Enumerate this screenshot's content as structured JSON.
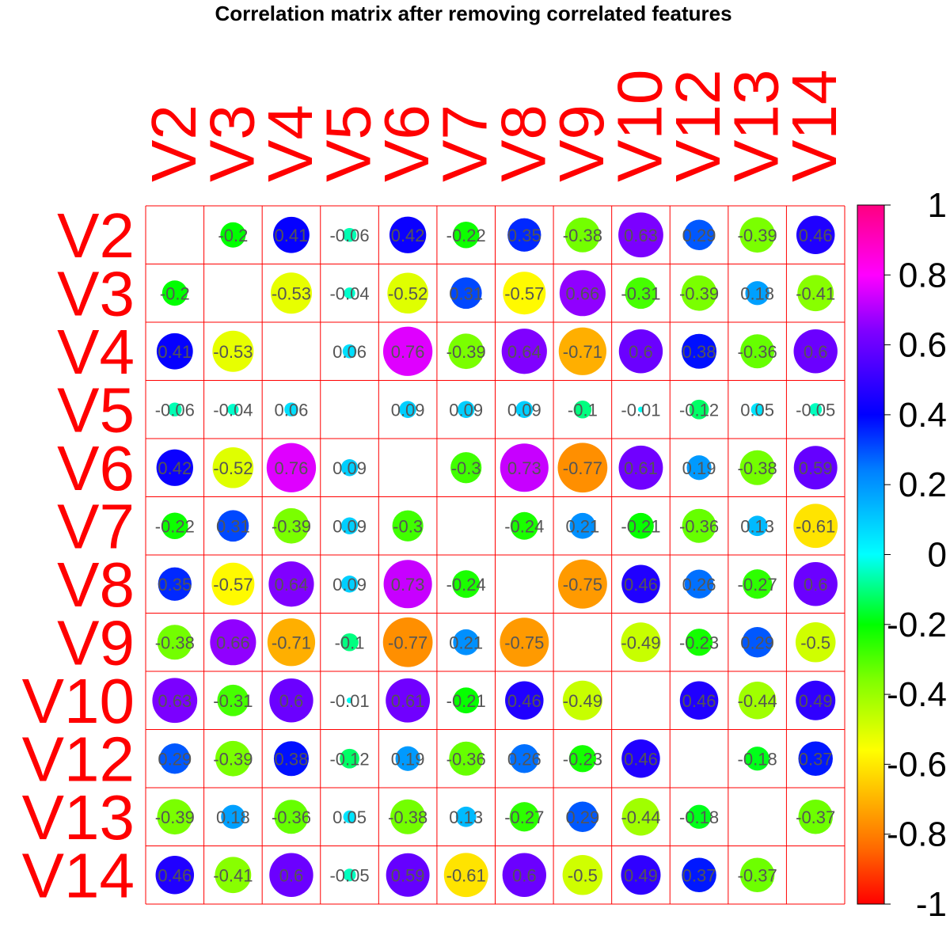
{
  "chart_data": {
    "type": "heatmap",
    "style": "circle-correlation-matrix",
    "title": "Correlation matrix after removing correlated features",
    "variables": [
      "V2",
      "V3",
      "V4",
      "V5",
      "V6",
      "V7",
      "V8",
      "V9",
      "V10",
      "V12",
      "V13",
      "V14"
    ],
    "value_labels": [
      [
        null,
        "-0.2",
        "0.41",
        "-0.06",
        "0.42",
        "-0.22",
        "0.35",
        "-0.38",
        "0.63",
        "0.29",
        "-0.39",
        "0.46"
      ],
      [
        "-0.2",
        null,
        "-0.53",
        "-0.04",
        "-0.52",
        "0.31",
        "-0.57",
        "0.66",
        "-0.31",
        "-0.39",
        "0.18",
        "-0.41"
      ],
      [
        "0.41",
        "-0.53",
        null,
        "0.06",
        "0.76",
        "-0.39",
        "0.64",
        "-0.71",
        "0.6",
        "0.38",
        "-0.36",
        "0.6"
      ],
      [
        "-0.06",
        "-0.04",
        "0.06",
        null,
        "0.09",
        "0.09",
        "0.09",
        "-0.1",
        "-0.01",
        "-0.12",
        "0.05",
        "-0.05"
      ],
      [
        "0.42",
        "-0.52",
        "0.76",
        "0.09",
        null,
        "-0.3",
        "0.73",
        "-0.77",
        "0.61",
        "0.19",
        "-0.38",
        "0.59"
      ],
      [
        "-0.22",
        "0.31",
        "-0.39",
        "0.09",
        "-0.3",
        null,
        "-0.24",
        "0.21",
        "-0.21",
        "-0.36",
        "0.13",
        "-0.61"
      ],
      [
        "0.35",
        "-0.57",
        "0.64",
        "0.09",
        "0.73",
        "-0.24",
        null,
        "-0.75",
        "0.46",
        "0.26",
        "-0.27",
        "0.6"
      ],
      [
        "-0.38",
        "0.66",
        "-0.71",
        "-0.1",
        "-0.77",
        "0.21",
        "-0.75",
        null,
        "-0.49",
        "-0.23",
        "0.29",
        "-0.5"
      ],
      [
        "0.63",
        "-0.31",
        "0.6",
        "-0.01",
        "0.61",
        "-0.21",
        "0.46",
        "-0.49",
        null,
        "0.46",
        "-0.44",
        "0.49"
      ],
      [
        "0.29",
        "-0.39",
        "0.38",
        "-0.12",
        "0.19",
        "-0.36",
        "0.26",
        "-0.23",
        "0.46",
        null,
        "-0.18",
        "0.37"
      ],
      [
        "-0.39",
        "0.18",
        "-0.36",
        "0.05",
        "-0.38",
        "0.13",
        "-0.27",
        "0.29",
        "-0.44",
        "-0.18",
        null,
        "-0.37"
      ],
      [
        "0.46",
        "-0.41",
        "0.6",
        "-0.05",
        "0.59",
        "-0.61",
        "0.6",
        "-0.5",
        "0.49",
        "0.37",
        "-0.37",
        null
      ]
    ],
    "colorbar": {
      "range": [
        -1,
        1
      ],
      "tick_labels": [
        "1",
        "0.8",
        "0.6",
        "0.4",
        "0.2",
        "0",
        "-0.2",
        "-0.4",
        "-0.6",
        "-0.8",
        "-1"
      ],
      "palette": "rainbow (red → orange → yellow → green → cyan → blue → purple → magenta)"
    },
    "diagonal": "blank",
    "grid_color": "#ff0000",
    "axis_label_color": "#ff0000",
    "value_label_color": "#555555"
  }
}
